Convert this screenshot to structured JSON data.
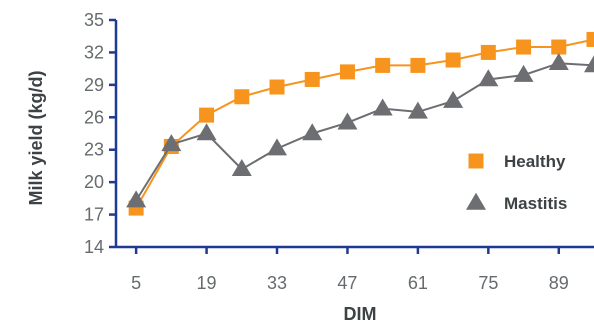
{
  "chart_data": {
    "type": "line",
    "title": "",
    "xlabel": "DIM",
    "ylabel": "Milk yield (kg/d)",
    "xlim": [
      1,
      96
    ],
    "ylim": [
      14,
      35
    ],
    "x_ticks": [
      "5",
      "19",
      "33",
      "47",
      "61",
      "75",
      "89"
    ],
    "x_tick_values": [
      5,
      19,
      33,
      47,
      61,
      75,
      89
    ],
    "y_ticks": [
      "14",
      "17",
      "20",
      "23",
      "26",
      "29",
      "32",
      "35"
    ],
    "y_tick_values": [
      14,
      17,
      20,
      23,
      26,
      29,
      32,
      35
    ],
    "grid": false,
    "legend_position": "right",
    "series": [
      {
        "name": "Healthy",
        "color": "#f7941d",
        "marker": "square",
        "x": [
          5,
          12,
          19,
          26,
          33,
          40,
          47,
          54,
          61,
          68,
          75,
          82,
          89,
          96
        ],
        "y": [
          17.6,
          23.3,
          26.2,
          27.9,
          28.8,
          29.5,
          30.2,
          30.8,
          30.8,
          31.3,
          32.0,
          32.5,
          32.5,
          33.2
        ]
      },
      {
        "name": "Mastitis",
        "color": "#6d6e71",
        "marker": "triangle",
        "x": [
          5,
          12,
          19,
          26,
          33,
          40,
          47,
          54,
          61,
          68,
          75,
          82,
          89,
          96
        ],
        "y": [
          18.3,
          23.5,
          24.5,
          21.2,
          23.1,
          24.5,
          25.5,
          26.8,
          26.5,
          27.5,
          29.5,
          29.9,
          31.0,
          30.8
        ]
      }
    ]
  }
}
